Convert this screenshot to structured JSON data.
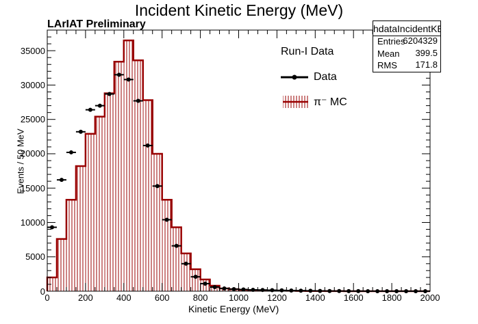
{
  "chart_data": {
    "type": "histogram",
    "title": "Incident Kinetic Energy (MeV)",
    "subtitle": "LArIAT Preliminary",
    "xlabel": "Kinetic Energy (MeV)",
    "ylabel": "Events / 50 MeV",
    "xlim": [
      0,
      2000
    ],
    "ylim": [
      0,
      38000
    ],
    "x_ticks": [
      "0",
      "200",
      "400",
      "600",
      "800",
      "1000",
      "1200",
      "1400",
      "1600",
      "1800",
      "2000"
    ],
    "y_ticks": [
      "0",
      "5000",
      "10000",
      "15000",
      "20000",
      "25000",
      "30000",
      "35000"
    ],
    "bin_width": 50,
    "grid": false,
    "legend": {
      "header": "Run-I Data",
      "position": "top-right"
    },
    "stats_box": {
      "name": "hdataIncidentKE",
      "rows": [
        {
          "label": "Entries",
          "value": "6204329"
        },
        {
          "label": "Mean",
          "value": "399.5"
        },
        {
          "label": "RMS",
          "value": "171.8"
        }
      ]
    },
    "series": [
      {
        "name": "Data",
        "style": "points",
        "color": "#000000",
        "x": [
          25,
          75,
          125,
          175,
          225,
          275,
          325,
          375,
          425,
          475,
          525,
          575,
          625,
          675,
          725,
          775,
          825,
          875,
          925,
          975,
          1025,
          1075,
          1125,
          1175,
          1225,
          1275,
          1325,
          1375,
          1425,
          1475,
          1525,
          1575,
          1625,
          1675,
          1725,
          1775,
          1825,
          1875,
          1925,
          1975
        ],
        "values": [
          9300,
          16200,
          20200,
          23200,
          26400,
          27000,
          28700,
          31500,
          30800,
          27700,
          21200,
          15300,
          10400,
          6600,
          4000,
          2100,
          1100,
          600,
          400,
          300,
          250,
          200,
          180,
          150,
          120,
          100,
          80,
          60,
          40,
          30,
          20,
          10,
          10,
          5,
          5,
          0,
          0,
          0,
          0,
          0
        ]
      },
      {
        "name": "π⁻ MC",
        "style": "hatched-histogram",
        "color": "#990000",
        "x": [
          25,
          75,
          125,
          175,
          225,
          275,
          325,
          375,
          425,
          475,
          525,
          575,
          625,
          675,
          725,
          775,
          825,
          875,
          925,
          975,
          1025,
          1075,
          1125,
          1175,
          1225,
          1275,
          1325,
          1375,
          1425,
          1475,
          1525,
          1575,
          1625,
          1675,
          1725,
          1775,
          1825,
          1875,
          1925,
          1975
        ],
        "values": [
          2000,
          7600,
          13300,
          18200,
          22900,
          25400,
          28800,
          33400,
          36500,
          33600,
          27800,
          20000,
          13300,
          9300,
          5500,
          3200,
          1700,
          800,
          400,
          300,
          200,
          150,
          120,
          100,
          80,
          60,
          40,
          30,
          20,
          15,
          10,
          5,
          5,
          0,
          0,
          0,
          0,
          0,
          0,
          0
        ]
      }
    ]
  }
}
